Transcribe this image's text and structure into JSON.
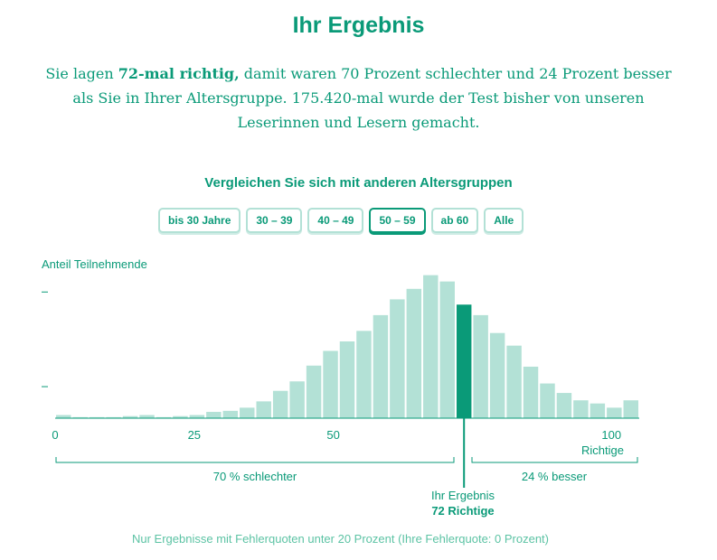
{
  "header": {
    "title": "Ihr Ergebnis"
  },
  "summary": {
    "part1": "Sie lagen ",
    "bold": "72-mal richtig,",
    "part2": " damit waren 70 Prozent schlechter und 24 Prozent besser als Sie in Ihrer Altersgruppe. 175.420-mal wurde der Test bisher von unseren Leserinnen und Lesern gemacht."
  },
  "compare_heading": "Vergleichen Sie sich mit anderen Altersgruppen",
  "age_buttons": [
    "bis 30 Jahre",
    "30 – 39",
    "40 – 49",
    "50 – 59",
    "ab 60",
    "Alle"
  ],
  "active_age_button": "50 – 59",
  "colors": {
    "accent": "#0a9a78",
    "bar": "#b3e1d6",
    "highlight": "#0a9a78"
  },
  "chart_data": {
    "type": "bar",
    "ylabel": "Anteil Teilnehmende",
    "xlabel": "Richtige",
    "xlim": [
      0,
      105
    ],
    "x_ticks": [
      0,
      25,
      50,
      100
    ],
    "x_tick_labels": [
      "0",
      "25",
      "50",
      "100"
    ],
    "bin_width": 3,
    "bin_starts": [
      0,
      3,
      6,
      9,
      12,
      15,
      18,
      21,
      24,
      27,
      30,
      33,
      36,
      39,
      42,
      45,
      48,
      51,
      54,
      57,
      60,
      63,
      66,
      69,
      72,
      75,
      78,
      81,
      84,
      87,
      90,
      93,
      96,
      99,
      102
    ],
    "values": [
      0.3,
      0.1,
      0.1,
      0.1,
      0.2,
      0.3,
      0.1,
      0.2,
      0.3,
      0.6,
      0.7,
      1.0,
      1.6,
      2.6,
      3.5,
      5.0,
      6.4,
      7.3,
      8.3,
      9.8,
      11.3,
      12.3,
      13.6,
      13.0,
      10.8,
      9.8,
      8.1,
      6.9,
      4.9,
      3.3,
      2.4,
      1.7,
      1.4,
      1.0,
      1.7
    ],
    "highlight_bin_index": 24,
    "y_ticks": [
      0,
      3,
      12
    ],
    "ylim": [
      0,
      14
    ],
    "annotation": {
      "line1": "Ihr Ergebnis",
      "line2": "72 Richtige"
    },
    "worse_label": "70 % schlechter",
    "better_label": "24 % besser"
  },
  "footnote": "Nur Ergebnisse mit Fehlerquoten unter 20 Prozent (Ihre Fehlerquote: 0 Prozent)"
}
